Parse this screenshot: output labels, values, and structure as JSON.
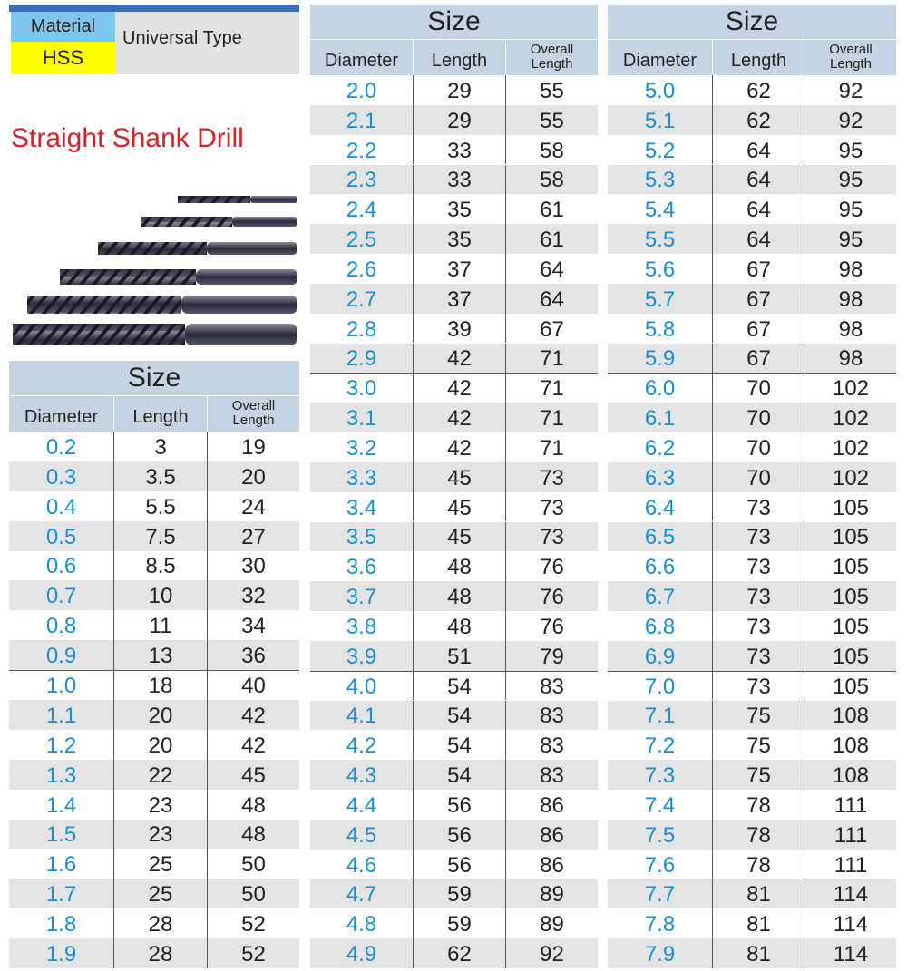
{
  "material": {
    "label": "Material",
    "value": "HSS",
    "type": "Universal Type"
  },
  "title": "Straight Shank Drill",
  "tables": [
    {
      "title": "Size",
      "columns": [
        "Diameter",
        "Length",
        "Overall Length"
      ],
      "rows": [
        [
          "0.2",
          "3",
          "19"
        ],
        [
          "0.3",
          "3.5",
          "20"
        ],
        [
          "0.4",
          "5.5",
          "24"
        ],
        [
          "0.5",
          "7.5",
          "27"
        ],
        [
          "0.6",
          "8.5",
          "30"
        ],
        [
          "0.7",
          "10",
          "32"
        ],
        [
          "0.8",
          "11",
          "34"
        ],
        [
          "0.9",
          "13",
          "36"
        ],
        [
          "1.0",
          "18",
          "40"
        ],
        [
          "1.1",
          "20",
          "42"
        ],
        [
          "1.2",
          "20",
          "42"
        ],
        [
          "1.3",
          "22",
          "45"
        ],
        [
          "1.4",
          "23",
          "48"
        ],
        [
          "1.5",
          "23",
          "48"
        ],
        [
          "1.6",
          "25",
          "50"
        ],
        [
          "1.7",
          "25",
          "50"
        ],
        [
          "1.8",
          "28",
          "52"
        ],
        [
          "1.9",
          "28",
          "52"
        ]
      ]
    },
    {
      "title": "Size",
      "columns": [
        "Diameter",
        "Length",
        "Overall Length"
      ],
      "rows": [
        [
          "2.0",
          "29",
          "55"
        ],
        [
          "2.1",
          "29",
          "55"
        ],
        [
          "2.2",
          "33",
          "58"
        ],
        [
          "2.3",
          "33",
          "58"
        ],
        [
          "2.4",
          "35",
          "61"
        ],
        [
          "2.5",
          "35",
          "61"
        ],
        [
          "2.6",
          "37",
          "64"
        ],
        [
          "2.7",
          "37",
          "64"
        ],
        [
          "2.8",
          "39",
          "67"
        ],
        [
          "2.9",
          "42",
          "71"
        ],
        [
          "3.0",
          "42",
          "71"
        ],
        [
          "3.1",
          "42",
          "71"
        ],
        [
          "3.2",
          "42",
          "71"
        ],
        [
          "3.3",
          "45",
          "73"
        ],
        [
          "3.4",
          "45",
          "73"
        ],
        [
          "3.5",
          "45",
          "73"
        ],
        [
          "3.6",
          "48",
          "76"
        ],
        [
          "3.7",
          "48",
          "76"
        ],
        [
          "3.8",
          "48",
          "76"
        ],
        [
          "3.9",
          "51",
          "79"
        ],
        [
          "4.0",
          "54",
          "83"
        ],
        [
          "4.1",
          "54",
          "83"
        ],
        [
          "4.2",
          "54",
          "83"
        ],
        [
          "4.3",
          "54",
          "83"
        ],
        [
          "4.4",
          "56",
          "86"
        ],
        [
          "4.5",
          "56",
          "86"
        ],
        [
          "4.6",
          "56",
          "86"
        ],
        [
          "4.7",
          "59",
          "89"
        ],
        [
          "4.8",
          "59",
          "89"
        ],
        [
          "4.9",
          "62",
          "92"
        ]
      ]
    },
    {
      "title": "Size",
      "columns": [
        "Diameter",
        "Length",
        "Overall Length"
      ],
      "rows": [
        [
          "5.0",
          "62",
          "92"
        ],
        [
          "5.1",
          "62",
          "92"
        ],
        [
          "5.2",
          "64",
          "95"
        ],
        [
          "5.3",
          "64",
          "95"
        ],
        [
          "5.4",
          "64",
          "95"
        ],
        [
          "5.5",
          "64",
          "95"
        ],
        [
          "5.6",
          "67",
          "98"
        ],
        [
          "5.7",
          "67",
          "98"
        ],
        [
          "5.8",
          "67",
          "98"
        ],
        [
          "5.9",
          "67",
          "98"
        ],
        [
          "6.0",
          "70",
          "102"
        ],
        [
          "6.1",
          "70",
          "102"
        ],
        [
          "6.2",
          "70",
          "102"
        ],
        [
          "6.3",
          "70",
          "102"
        ],
        [
          "6.4",
          "73",
          "105"
        ],
        [
          "6.5",
          "73",
          "105"
        ],
        [
          "6.6",
          "73",
          "105"
        ],
        [
          "6.7",
          "73",
          "105"
        ],
        [
          "6.8",
          "73",
          "105"
        ],
        [
          "6.9",
          "73",
          "105"
        ],
        [
          "7.0",
          "73",
          "105"
        ],
        [
          "7.1",
          "75",
          "108"
        ],
        [
          "7.2",
          "75",
          "108"
        ],
        [
          "7.3",
          "75",
          "108"
        ],
        [
          "7.4",
          "78",
          "111"
        ],
        [
          "7.5",
          "78",
          "111"
        ],
        [
          "7.6",
          "78",
          "111"
        ],
        [
          "7.7",
          "81",
          "114"
        ],
        [
          "7.8",
          "81",
          "114"
        ],
        [
          "7.9",
          "81",
          "114"
        ]
      ]
    }
  ]
}
